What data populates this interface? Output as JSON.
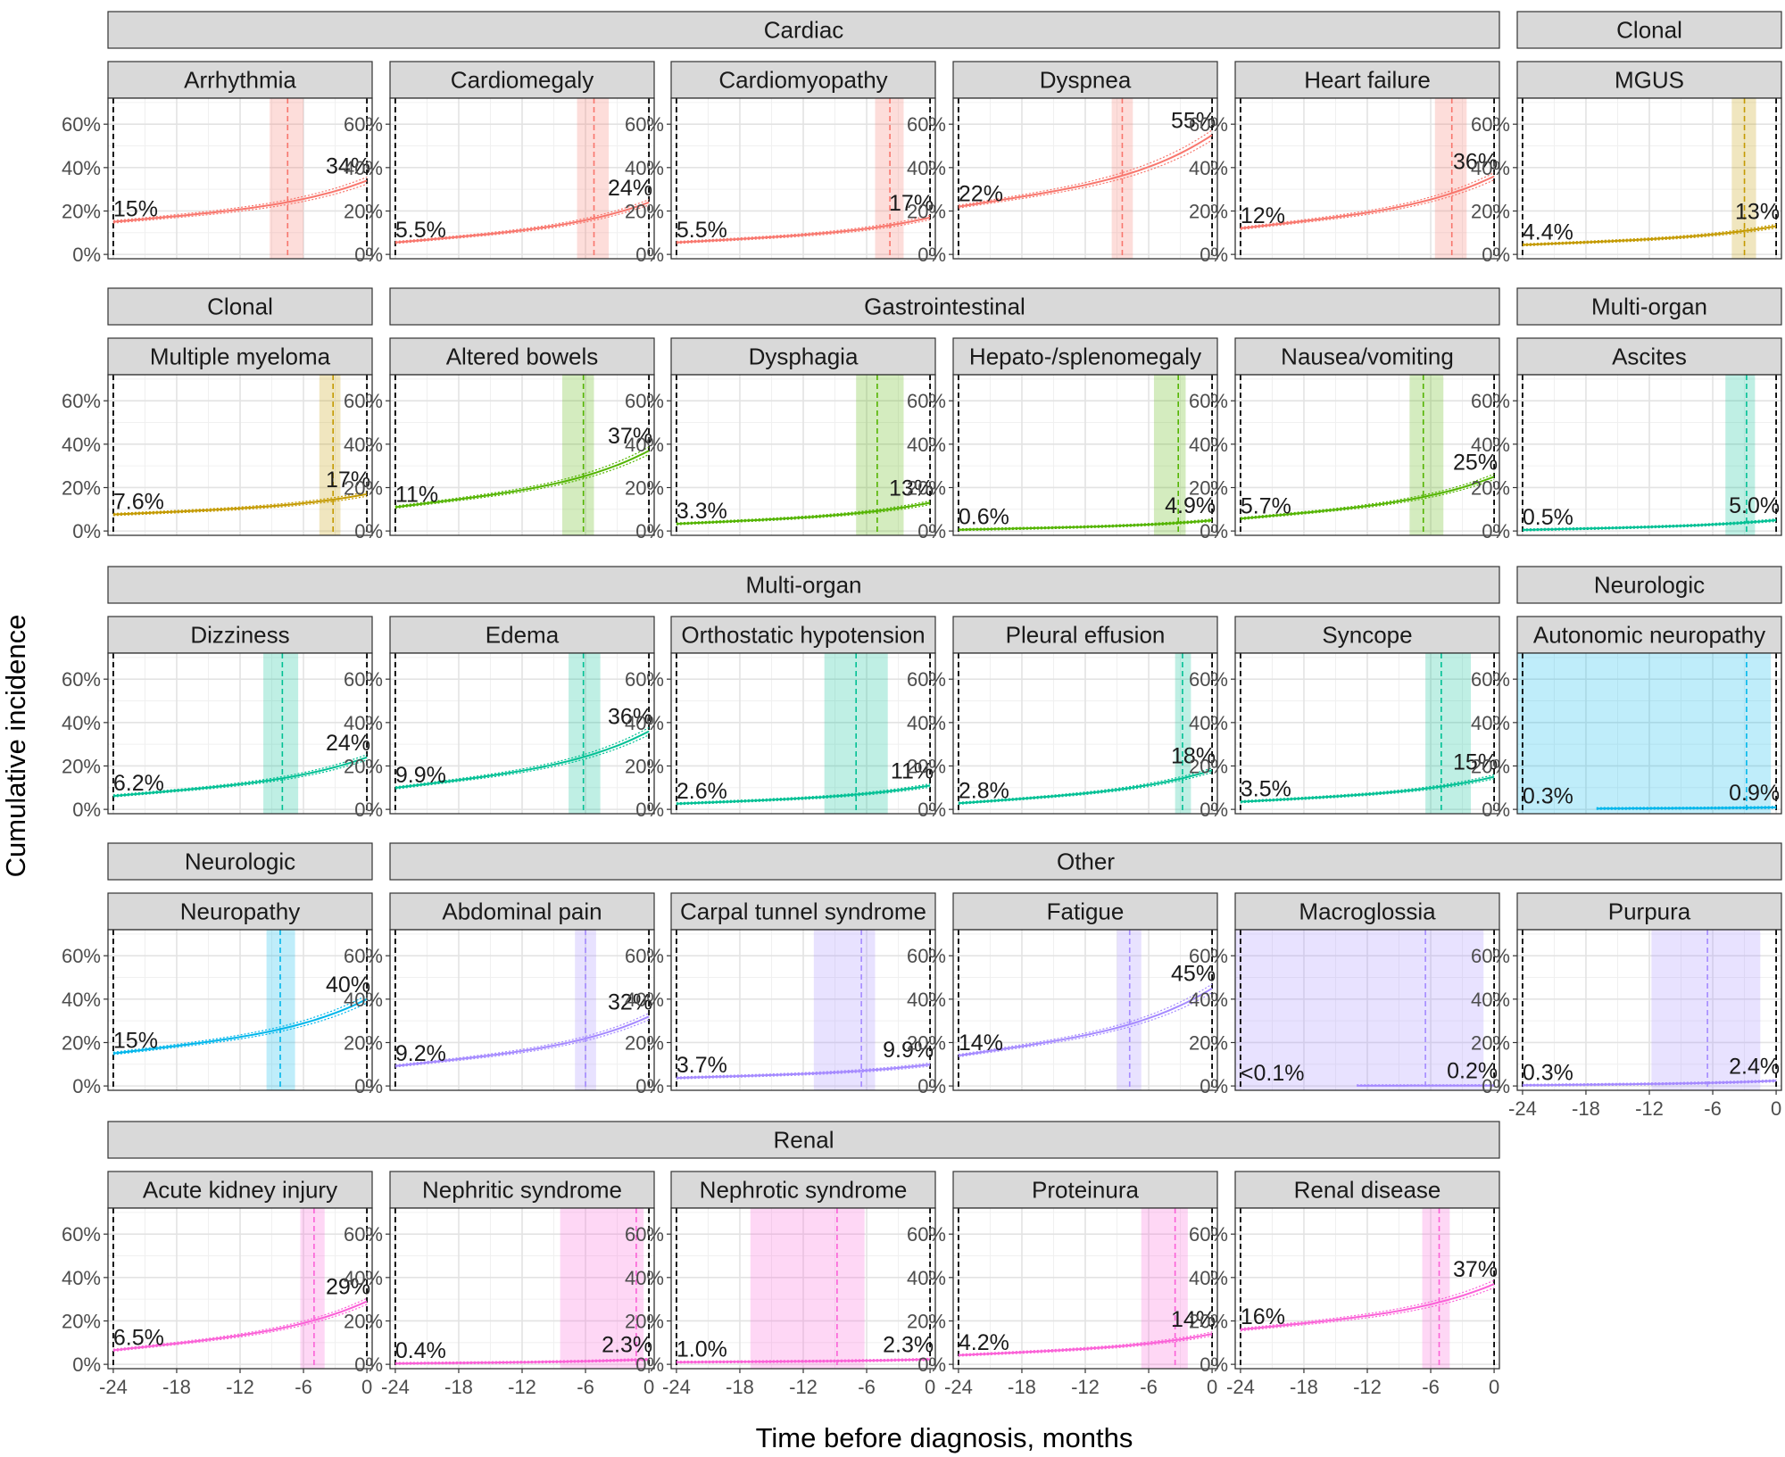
{
  "chart_data": {
    "type": "line",
    "xlabel": "Time before diagnosis, months",
    "ylabel": "Cumulative incidence",
    "x_ticks": [
      "-24",
      "-18",
      "-12",
      "-6",
      "0"
    ],
    "y_ticks": [
      "0%",
      "20%",
      "40%",
      "60%"
    ],
    "xlim": [
      -24.5,
      0.5
    ],
    "ylim": [
      -0.02,
      0.72
    ],
    "colors": {
      "Cardiac": "#F8766D",
      "Clonal": "#C49A00",
      "Gastrointestinal": "#53B400",
      "Multi-organ": "#00C094",
      "Neurologic": "#00B6EB",
      "Other": "#A58AFF",
      "Renal": "#FB61D7"
    },
    "rows": [
      {
        "groups": [
          {
            "label": "Cardiac",
            "start": 0,
            "span": 5
          },
          {
            "label": "Clonal",
            "start": 5,
            "span": 1
          }
        ],
        "panels": [
          {
            "name": "Arrhythmia",
            "category": "Cardiac",
            "start": 0.15,
            "end": 0.34,
            "start_label": "15%",
            "end_label": "34%",
            "dx": -7.5,
            "band": [
              -9.2,
              -6.0
            ]
          },
          {
            "name": "Cardiomegaly",
            "category": "Cardiac",
            "start": 0.055,
            "end": 0.24,
            "start_label": "5.5%",
            "end_label": "24%",
            "dx": -5.2,
            "band": [
              -6.8,
              -3.8
            ]
          },
          {
            "name": "Cardiomyopathy",
            "category": "Cardiac",
            "start": 0.055,
            "end": 0.17,
            "start_label": "5.5%",
            "end_label": "17%",
            "dx": -3.8,
            "band": [
              -5.2,
              -2.5
            ]
          },
          {
            "name": "Dyspnea",
            "category": "Cardiac",
            "start": 0.22,
            "end": 0.55,
            "start_label": "22%",
            "end_label": "55%",
            "dx": -8.5,
            "band": [
              -9.5,
              -7.5
            ]
          },
          {
            "name": "Heart failure",
            "category": "Cardiac",
            "start": 0.12,
            "end": 0.36,
            "start_label": "12%",
            "end_label": "36%",
            "dx": -4.0,
            "band": [
              -5.6,
              -2.6
            ]
          },
          {
            "name": "MGUS",
            "category": "Clonal",
            "start": 0.044,
            "end": 0.13,
            "start_label": "4.4%",
            "end_label": "13%",
            "dx": -3.0,
            "band": [
              -4.2,
              -1.9
            ]
          }
        ]
      },
      {
        "groups": [
          {
            "label": "Clonal",
            "start": 0,
            "span": 1
          },
          {
            "label": "Gastrointestinal",
            "start": 1,
            "span": 4
          },
          {
            "label": "Multi-organ",
            "start": 5,
            "span": 1
          }
        ],
        "panels": [
          {
            "name": "Multiple myeloma",
            "category": "Clonal",
            "start": 0.076,
            "end": 0.17,
            "start_label": "7.6%",
            "end_label": "17%",
            "dx": -3.2,
            "band": [
              -4.5,
              -2.5
            ]
          },
          {
            "name": "Altered bowels",
            "category": "Gastrointestinal",
            "start": 0.11,
            "end": 0.37,
            "start_label": "11%",
            "end_label": "37%",
            "dx": -6.2,
            "band": [
              -8.2,
              -5.2
            ]
          },
          {
            "name": "Dysphagia",
            "category": "Gastrointestinal",
            "start": 0.033,
            "end": 0.13,
            "start_label": "3.3%",
            "end_label": "13%",
            "dx": -5.0,
            "band": [
              -7.0,
              -2.5
            ]
          },
          {
            "name": "Hepato-/splenomegaly",
            "category": "Gastrointestinal",
            "start": 0.006,
            "end": 0.049,
            "start_label": "0.6%",
            "end_label": "4.9%",
            "dx": -3.2,
            "band": [
              -5.5,
              -2.5
            ]
          },
          {
            "name": "Nausea/vomiting",
            "category": "Gastrointestinal",
            "start": 0.057,
            "end": 0.25,
            "start_label": "5.7%",
            "end_label": "25%",
            "dx": -6.7,
            "band": [
              -8.0,
              -4.8
            ]
          },
          {
            "name": "Ascites",
            "category": "Multi-organ",
            "start": 0.005,
            "end": 0.05,
            "start_label": "0.5%",
            "end_label": "5.0%",
            "dx": -2.8,
            "band": [
              -4.8,
              -2.0
            ]
          }
        ]
      },
      {
        "groups": [
          {
            "label": "Multi-organ",
            "start": 0,
            "span": 5
          },
          {
            "label": "Neurologic",
            "start": 5,
            "span": 1
          }
        ],
        "panels": [
          {
            "name": "Dizziness",
            "category": "Multi-organ",
            "start": 0.062,
            "end": 0.24,
            "start_label": "6.2%",
            "end_label": "24%",
            "dx": -8.0,
            "band": [
              -9.8,
              -6.5
            ]
          },
          {
            "name": "Edema",
            "category": "Multi-organ",
            "start": 0.099,
            "end": 0.36,
            "start_label": "9.9%",
            "end_label": "36%",
            "dx": -6.2,
            "band": [
              -7.6,
              -4.6
            ]
          },
          {
            "name": "Orthostatic hypotension",
            "category": "Multi-organ",
            "start": 0.026,
            "end": 0.11,
            "start_label": "2.6%",
            "end_label": "11%",
            "dx": -7.0,
            "band": [
              -10.0,
              -4.0
            ]
          },
          {
            "name": "Pleural effusion",
            "category": "Multi-organ",
            "start": 0.028,
            "end": 0.18,
            "start_label": "2.8%",
            "end_label": "18%",
            "dx": -2.8,
            "band": [
              -3.5,
              -2.0
            ]
          },
          {
            "name": "Syncope",
            "category": "Multi-organ",
            "start": 0.035,
            "end": 0.15,
            "start_label": "3.5%",
            "end_label": "15%",
            "dx": -5.0,
            "band": [
              -6.5,
              -2.2
            ]
          },
          {
            "name": "Autonomic neuropathy",
            "category": "Neurologic",
            "start": 0.003,
            "end": 0.009,
            "start_label": "0.3%",
            "end_label": "0.9%",
            "dx": -2.8,
            "band": [
              -24.5,
              -0.5
            ],
            "line_from": -17
          }
        ]
      },
      {
        "groups": [
          {
            "label": "Neurologic",
            "start": 0,
            "span": 1
          },
          {
            "label": "Other",
            "start": 1,
            "span": 5
          }
        ],
        "panels": [
          {
            "name": "Neuropathy",
            "category": "Neurologic",
            "start": 0.15,
            "end": 0.4,
            "start_label": "15%",
            "end_label": "40%",
            "dx": -8.2,
            "band": [
              -9.5,
              -6.8
            ]
          },
          {
            "name": "Abdominal pain",
            "category": "Other",
            "start": 0.092,
            "end": 0.32,
            "start_label": "9.2%",
            "end_label": "32%",
            "dx": -6.0,
            "band": [
              -7.0,
              -5.0
            ]
          },
          {
            "name": "Carpal tunnel syndrome",
            "category": "Other",
            "start": 0.037,
            "end": 0.099,
            "start_label": "3.7%",
            "end_label": "9.9%",
            "dx": -6.5,
            "band": [
              -11.0,
              -5.2
            ]
          },
          {
            "name": "Fatigue",
            "category": "Other",
            "start": 0.14,
            "end": 0.45,
            "start_label": "14%",
            "end_label": "45%",
            "dx": -7.8,
            "band": [
              -9.0,
              -6.7
            ]
          },
          {
            "name": "Macroglossia",
            "category": "Other",
            "start": 0.0005,
            "end": 0.002,
            "start_label": "<0.1%",
            "end_label": "0.2%",
            "dx": -6.5,
            "band": [
              -24.5,
              -1.0
            ],
            "line_from": -13
          }
        ]
      },
      {
        "groups": [
          {
            "label": "Renal",
            "start": 0,
            "span": 5
          }
        ],
        "panels": [
          {
            "name": "Acute kidney injury",
            "category": "Renal",
            "start": 0.065,
            "end": 0.29,
            "start_label": "6.5%",
            "end_label": "29%",
            "dx": -5.0,
            "band": [
              -6.3,
              -4.0
            ]
          },
          {
            "name": "Nephritic syndrome",
            "category": "Renal",
            "start": 0.004,
            "end": 0.023,
            "start_label": "0.4%",
            "end_label": "2.3%",
            "dx": -1.2,
            "band": [
              -8.4,
              -0.5
            ]
          },
          {
            "name": "Nephrotic syndrome",
            "category": "Renal",
            "start": 0.01,
            "end": 0.023,
            "start_label": "1.0%",
            "end_label": "2.3%",
            "dx": -8.8,
            "band": [
              -17.0,
              -6.2
            ]
          },
          {
            "name": "Proteinura",
            "category": "Renal",
            "start": 0.042,
            "end": 0.14,
            "start_label": "4.2%",
            "end_label": "14%",
            "dx": -3.5,
            "band": [
              -6.7,
              -2.3
            ]
          },
          {
            "name": "Renal disease",
            "category": "Renal",
            "start": 0.16,
            "end": 0.37,
            "start_label": "16%",
            "end_label": "37%",
            "dx": -5.2,
            "band": [
              -6.8,
              -4.2
            ]
          }
        ]
      }
    ],
    "purpura": {
      "name": "Purpura",
      "category": "Other",
      "start": 0.003,
      "end": 0.024,
      "start_label": "0.3%",
      "end_label": "2.4%",
      "dx": -6.5,
      "band": [
        -11.8,
        -1.5
      ]
    }
  }
}
